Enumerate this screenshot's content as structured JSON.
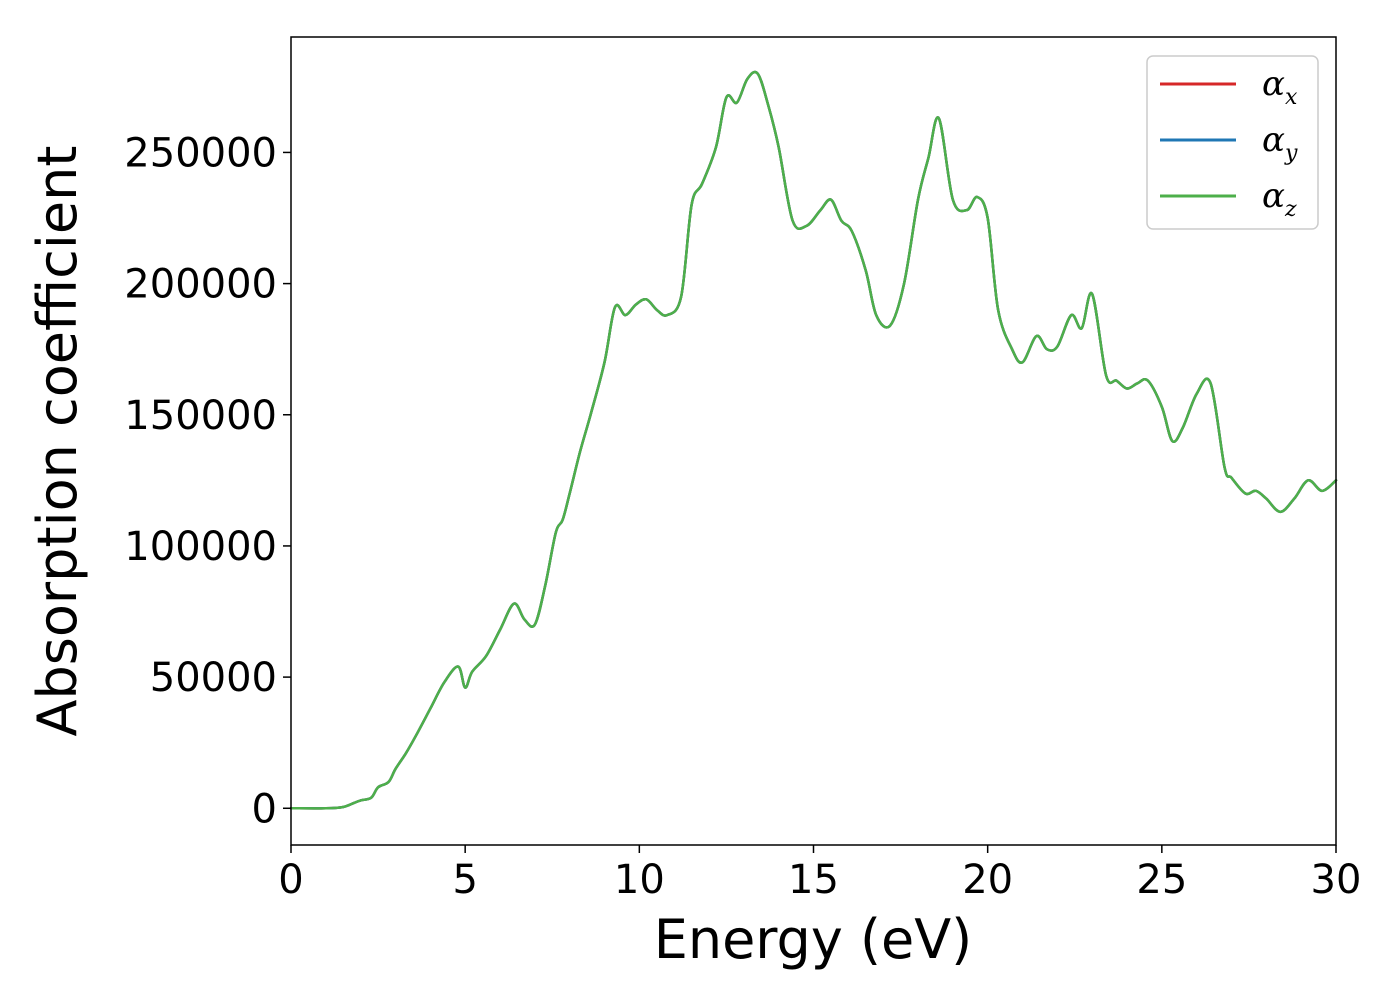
{
  "chart_data": {
    "type": "line",
    "xlabel": "Energy (eV)",
    "ylabel": "Absorption coefficient",
    "xlim": [
      0,
      30
    ],
    "ylim": [
      -14000,
      294000
    ],
    "xticks": [
      0,
      5,
      10,
      15,
      20,
      25,
      30
    ],
    "xtick_labels": [
      "0",
      "5",
      "10",
      "15",
      "20",
      "25",
      "30"
    ],
    "yticks": [
      0,
      50000,
      100000,
      150000,
      200000,
      250000
    ],
    "ytick_labels": [
      "0",
      "50000",
      "100000",
      "150000",
      "200000",
      "250000"
    ],
    "grid": false,
    "legend_position": "top-right",
    "series": [
      {
        "name": "α",
        "sub": "x",
        "color": "#d62728"
      },
      {
        "name": "α",
        "sub": "y",
        "color": "#1f77b4"
      },
      {
        "name": "α",
        "sub": "z",
        "color": "#4daf4a"
      }
    ],
    "x": [
      0,
      1.0,
      1.5,
      1.8,
      2.0,
      2.3,
      2.5,
      2.8,
      3.0,
      3.3,
      3.6,
      4.0,
      4.4,
      4.8,
      5.0,
      5.2,
      5.6,
      6.0,
      6.4,
      6.7,
      7.0,
      7.3,
      7.6,
      7.8,
      8.0,
      8.3,
      8.6,
      9.0,
      9.3,
      9.6,
      9.9,
      10.2,
      10.5,
      10.8,
      11.2,
      11.5,
      11.8,
      12.2,
      12.5,
      12.8,
      13.1,
      13.4,
      13.7,
      14.0,
      14.4,
      14.8,
      15.2,
      15.5,
      15.8,
      16.1,
      16.5,
      16.8,
      17.2,
      17.6,
      18.0,
      18.3,
      18.6,
      19.0,
      19.4,
      19.7,
      20.0,
      20.3,
      20.7,
      21.0,
      21.4,
      21.7,
      22.0,
      22.4,
      22.7,
      23.0,
      23.4,
      23.7,
      24.0,
      24.3,
      24.6,
      25.0,
      25.3,
      25.6,
      26.0,
      26.4,
      26.8,
      27.0,
      27.4,
      27.7,
      28.0,
      28.4,
      28.8,
      29.2,
      29.6,
      30.0
    ],
    "values": [
      0,
      0,
      500,
      2000,
      3000,
      4000,
      8000,
      10000,
      15000,
      21000,
      28000,
      38000,
      48000,
      54000,
      46000,
      52000,
      58000,
      68000,
      78000,
      72000,
      70000,
      85000,
      105000,
      110000,
      120000,
      136000,
      150000,
      170000,
      191000,
      188000,
      192000,
      194000,
      190000,
      188000,
      195000,
      230000,
      238000,
      252000,
      271000,
      269000,
      278000,
      280000,
      268000,
      252000,
      224000,
      222000,
      228000,
      232000,
      224000,
      220000,
      205000,
      188000,
      184000,
      200000,
      232000,
      248000,
      263000,
      232000,
      228000,
      233000,
      225000,
      190000,
      175000,
      170000,
      180000,
      175000,
      176000,
      188000,
      183000,
      196000,
      165000,
      163000,
      160000,
      162000,
      163000,
      153000,
      140000,
      145000,
      158000,
      162000,
      130000,
      126000,
      120000,
      121000,
      118000,
      113000,
      118000,
      125000,
      121000,
      125000
    ]
  }
}
